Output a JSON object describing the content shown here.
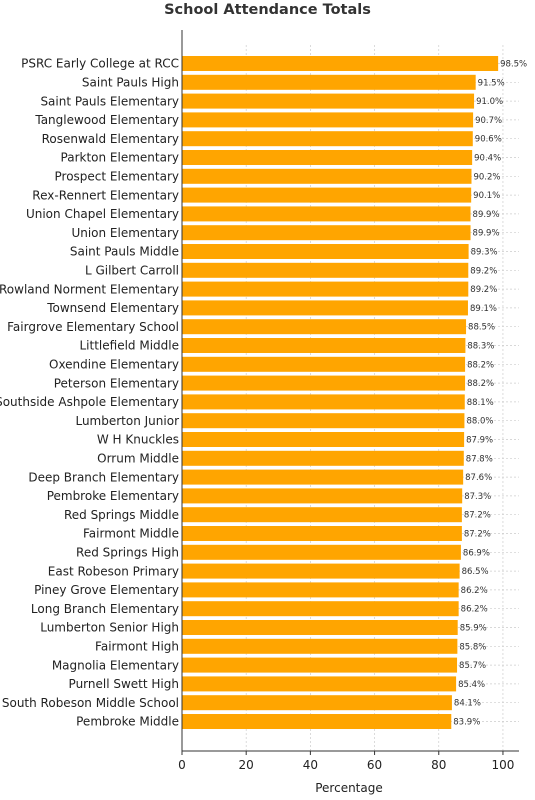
{
  "chart_data": {
    "type": "bar",
    "orientation": "horizontal",
    "title": "School Attendance Totals",
    "xlabel": "Percentage",
    "ylabel": "",
    "xlim": [
      0,
      105
    ],
    "xticks": [
      0,
      20,
      40,
      60,
      80,
      100
    ],
    "grid": true,
    "bar_color": "#FFA500",
    "value_label_suffix": "%",
    "categories": [
      "PSRC Early College at RCC",
      "Saint Pauls High",
      "Saint Pauls Elementary",
      "Tanglewood Elementary",
      "Rosenwald Elementary",
      "Parkton Elementary",
      "Prospect Elementary",
      "Rex-Rennert Elementary",
      "Union Chapel Elementary",
      "Union Elementary",
      "Saint Pauls Middle",
      "L Gilbert Carroll",
      "Rowland Norment Elementary",
      "Townsend Elementary",
      "Fairgrove Elementary School",
      "Littlefield Middle",
      "Oxendine Elementary",
      "Peterson Elementary",
      "Southside Ashpole Elementary",
      "Lumberton Junior",
      "W H Knuckles",
      "Orrum Middle",
      "Deep Branch Elementary",
      "Pembroke Elementary",
      "Red Springs Middle",
      "Fairmont Middle",
      "Red Springs High",
      "East Robeson Primary",
      "Piney Grove Elementary",
      "Long Branch Elementary",
      "Lumberton Senior High",
      "Fairmont High",
      "Magnolia Elementary",
      "Purnell Swett High",
      "South Robeson Middle School",
      "Pembroke Middle"
    ],
    "values": [
      98.5,
      91.5,
      91.0,
      90.7,
      90.6,
      90.4,
      90.2,
      90.1,
      89.9,
      89.9,
      89.3,
      89.2,
      89.2,
      89.1,
      88.5,
      88.3,
      88.2,
      88.2,
      88.1,
      88.0,
      87.9,
      87.8,
      87.6,
      87.3,
      87.2,
      87.2,
      86.9,
      86.5,
      86.2,
      86.2,
      85.9,
      85.8,
      85.7,
      85.4,
      84.1,
      83.9
    ]
  }
}
